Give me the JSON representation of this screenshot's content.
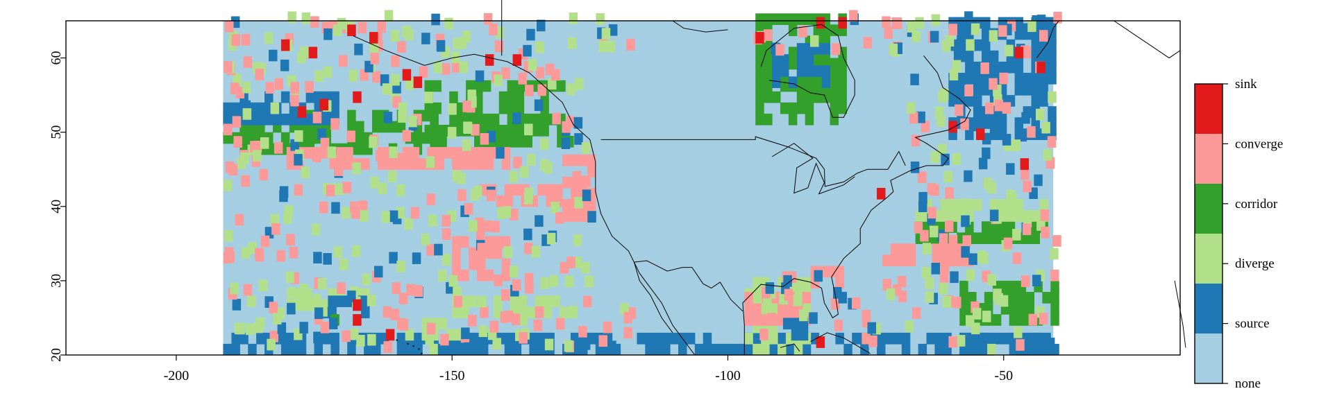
{
  "chart_data": {
    "type": "heatmap",
    "title": "",
    "xlabel": "",
    "ylabel": "",
    "xlim": [
      -220,
      -18
    ],
    "ylim": [
      20,
      65
    ],
    "x_ticks": [
      -200,
      -150,
      -100,
      -50
    ],
    "y_ticks": [
      20,
      30,
      40,
      50,
      60
    ],
    "x_tick_labels": [
      "-200",
      "-150",
      "-100",
      "-50"
    ],
    "y_tick_labels": [
      "20",
      "30",
      "40",
      "50",
      "60"
    ],
    "data_extent": {
      "lon": [
        -191.5,
        -41
      ],
      "lat": [
        20,
        65
      ]
    },
    "legend": {
      "placement": "right",
      "categories": [
        {
          "label": "sink",
          "color": "#e31a1c"
        },
        {
          "label": "converge",
          "color": "#fb9a99"
        },
        {
          "label": "corridor",
          "color": "#33a02c"
        },
        {
          "label": "diverge",
          "color": "#b2df8a"
        },
        {
          "label": "source",
          "color": "#1f78b4"
        },
        {
          "label": "none",
          "color": "#a6cee3"
        }
      ]
    },
    "regions": [
      {
        "category": "source",
        "lon": [
          -191.5,
          -41
        ],
        "lat": [
          20,
          22
        ]
      },
      {
        "category": "corridor",
        "lon": [
          -191.5,
          -151
        ],
        "lat": [
          47,
          53
        ]
      },
      {
        "category": "source",
        "lon": [
          -191.5,
          -171
        ],
        "lat": [
          51,
          55
        ]
      },
      {
        "category": "corridor",
        "lon": [
          -155,
          -128
        ],
        "lat": [
          48,
          56
        ]
      },
      {
        "category": "converge",
        "lon": [
          -180,
          -140
        ],
        "lat": [
          45,
          47
        ]
      },
      {
        "category": "corridor",
        "lon": [
          -95,
          -79
        ],
        "lat": [
          51,
          65
        ]
      },
      {
        "category": "source",
        "lon": [
          -92,
          -82
        ],
        "lat": [
          56,
          62
        ]
      },
      {
        "category": "source",
        "lon": [
          -60,
          -41
        ],
        "lat": [
          49,
          65
        ]
      },
      {
        "category": "corridor",
        "lon": [
          -66,
          -41
        ],
        "lat": [
          35,
          38
        ]
      },
      {
        "category": "corridor",
        "lon": [
          -58,
          -41
        ],
        "lat": [
          24,
          30
        ]
      },
      {
        "category": "source",
        "lon": [
          -58,
          -41
        ],
        "lat": [
          20,
          22
        ]
      },
      {
        "category": "diverge",
        "lon": [
          -66,
          -42
        ],
        "lat": [
          38,
          41
        ]
      },
      {
        "category": "converge",
        "lon": [
          -72,
          -56
        ],
        "lat": [
          32,
          35
        ]
      },
      {
        "category": "converge",
        "lon": [
          -150,
          -140
        ],
        "lat": [
          30,
          36
        ]
      },
      {
        "category": "diverge",
        "lon": [
          -150,
          -128
        ],
        "lat": [
          25,
          28
        ]
      },
      {
        "category": "converge",
        "lon": [
          -130,
          -125
        ],
        "lat": [
          38,
          46
        ]
      },
      {
        "category": "converge",
        "lon": [
          -145,
          -130
        ],
        "lat": [
          40,
          42
        ]
      },
      {
        "category": "diverge",
        "lon": [
          -160,
          -148
        ],
        "lat": [
          22,
          24
        ]
      },
      {
        "category": "diverge",
        "lon": [
          -97,
          -85
        ],
        "lat": [
          20,
          30
        ]
      },
      {
        "category": "converge",
        "lon": [
          -97,
          -85
        ],
        "lat": [
          24,
          28
        ]
      },
      {
        "category": "source",
        "lon": [
          -90,
          -86
        ],
        "lat": [
          22,
          24
        ]
      },
      {
        "category": "converge",
        "lon": [
          -85,
          -80
        ],
        "lat": [
          29,
          31
        ]
      },
      {
        "category": "diverge",
        "lon": [
          -180,
          -165
        ],
        "lat": [
          26,
          28
        ]
      },
      {
        "category": "source",
        "lon": [
          -174,
          -166
        ],
        "lat": [
          25,
          27
        ]
      },
      {
        "category": "corridor",
        "lon": [
          -172,
          -168
        ],
        "lat": [
          24,
          25
        ]
      }
    ],
    "sinks": [
      [
        -181,
        61
      ],
      [
        -176,
        60
      ],
      [
        -169,
        63
      ],
      [
        -165,
        62
      ],
      [
        -159,
        57
      ],
      [
        -157,
        56
      ],
      [
        -168,
        54
      ],
      [
        -178,
        52
      ],
      [
        -174,
        53
      ],
      [
        -144,
        59
      ],
      [
        -139,
        59
      ],
      [
        -95,
        62
      ],
      [
        -84,
        64
      ],
      [
        -80,
        64
      ],
      [
        -48,
        60
      ],
      [
        -44,
        58
      ],
      [
        -55,
        49
      ],
      [
        -47,
        45
      ],
      [
        -73,
        41
      ],
      [
        -162,
        22
      ],
      [
        -168,
        24
      ],
      [
        -168,
        26
      ],
      [
        -84,
        21
      ],
      [
        -60,
        50
      ]
    ]
  }
}
